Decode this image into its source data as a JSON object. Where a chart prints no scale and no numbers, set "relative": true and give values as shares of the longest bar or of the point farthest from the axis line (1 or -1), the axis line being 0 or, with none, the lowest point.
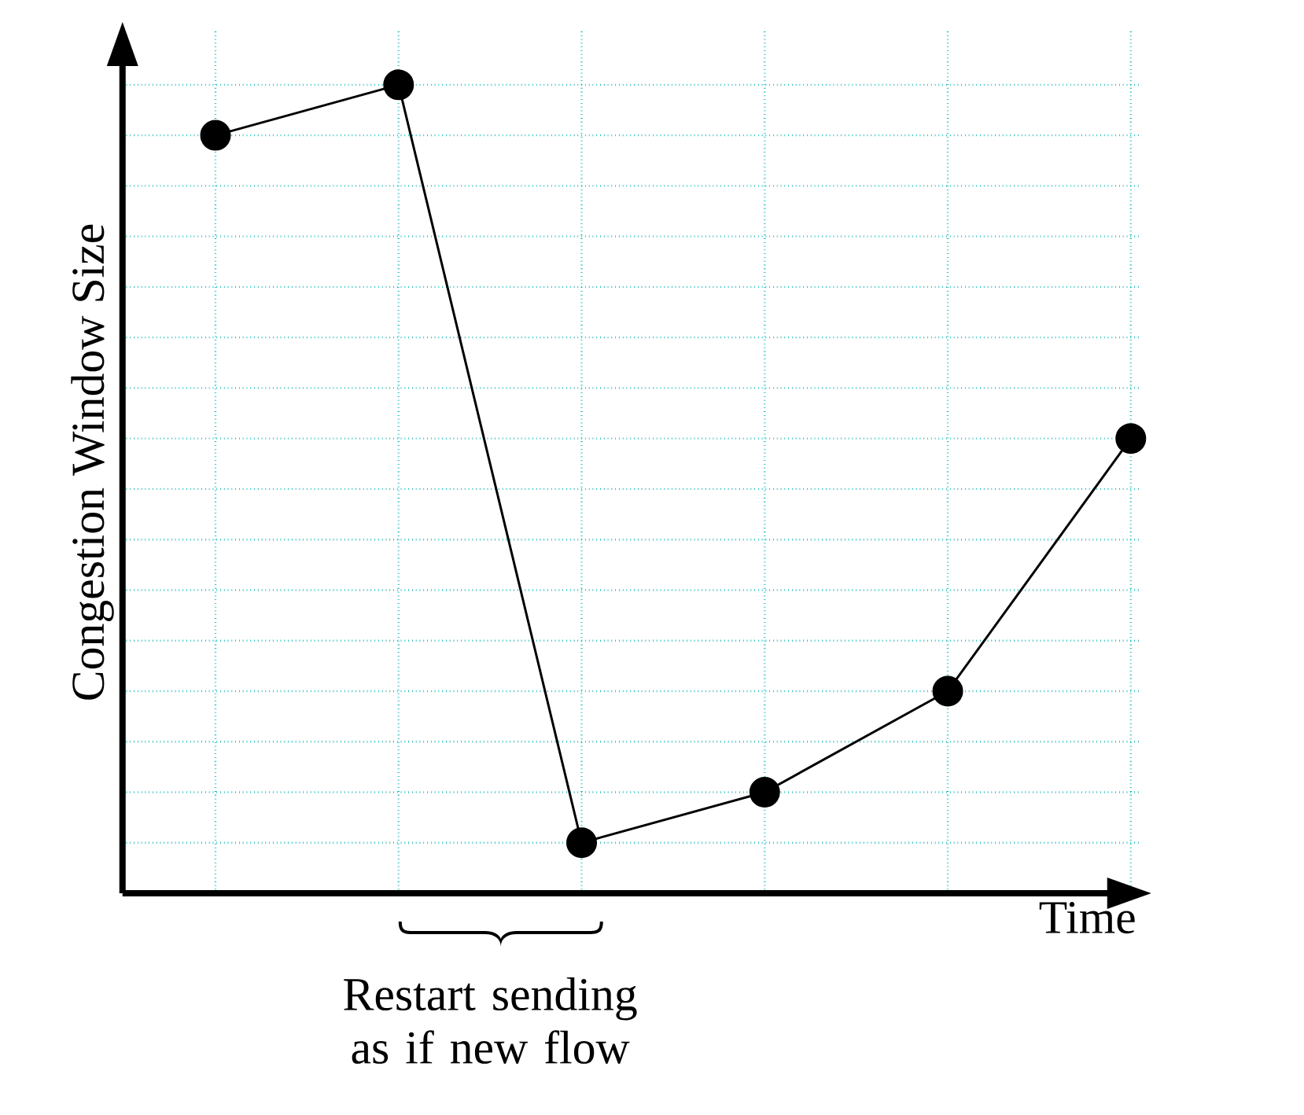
{
  "chart_data": {
    "type": "line",
    "relative": true,
    "categories": [
      null,
      null,
      null,
      null,
      null,
      null
    ],
    "values": [
      0.9375,
      1,
      0.0625,
      0.125,
      0.25,
      0.5625
    ],
    "color": "#000000",
    "marker": "circle",
    "line_style": "solid",
    "grid": true,
    "xlabel": "Time",
    "ylabel": "Congestion Window Size",
    "annotations": [
      "Restart sending as if new flow"
    ]
  }
}
